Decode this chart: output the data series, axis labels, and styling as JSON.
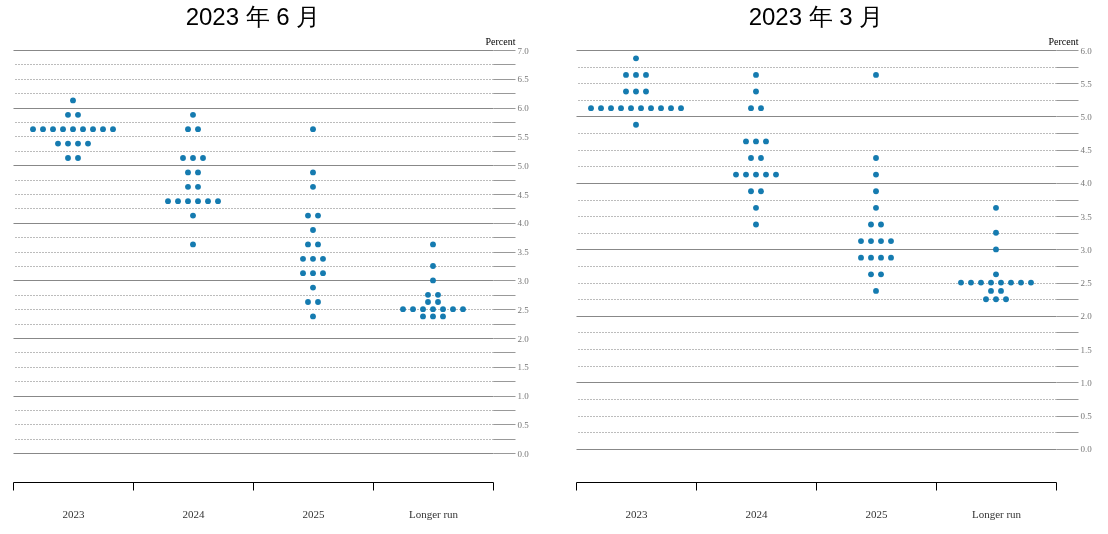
{
  "chart_data": [
    {
      "type": "scatter",
      "title": "2023 年 6 月",
      "ylabel": "Percent",
      "categories": [
        "2023",
        "2024",
        "2025",
        "Longer run"
      ],
      "marker": "circle",
      "grid": true,
      "ylim": [
        -0.5,
        7
      ],
      "yticks": [
        {
          "value": 0,
          "label": "0.0"
        },
        {
          "value": 0.25,
          "label": null
        },
        {
          "value": 0.5,
          "label": "0.5"
        },
        {
          "value": 0.75,
          "label": null
        },
        {
          "value": 1,
          "label": "1.0"
        },
        {
          "value": 1.25,
          "label": null
        },
        {
          "value": 1.5,
          "label": "1.5"
        },
        {
          "value": 1.75,
          "label": null
        },
        {
          "value": 2,
          "label": "2.0"
        },
        {
          "value": 2.25,
          "label": null
        },
        {
          "value": 2.5,
          "label": "2.5"
        },
        {
          "value": 2.75,
          "label": null
        },
        {
          "value": 3,
          "label": "3.0"
        },
        {
          "value": 3.25,
          "label": null
        },
        {
          "value": 3.5,
          "label": "3.5"
        },
        {
          "value": 3.75,
          "label": null
        },
        {
          "value": 4,
          "label": "4.0"
        },
        {
          "value": 4.25,
          "label": null
        },
        {
          "value": 4.5,
          "label": "4.5"
        },
        {
          "value": 4.75,
          "label": null
        },
        {
          "value": 5,
          "label": "5.0"
        },
        {
          "value": 5.25,
          "label": null
        },
        {
          "value": 5.5,
          "label": "5.5"
        },
        {
          "value": 5.75,
          "label": null
        },
        {
          "value": 6,
          "label": "6.0"
        },
        {
          "value": 6.25,
          "label": null
        },
        {
          "value": 6.5,
          "label": "6.5"
        },
        {
          "value": 6.75,
          "label": null
        },
        {
          "value": 7,
          "label": "7.0"
        }
      ],
      "series": [
        {
          "color": "#157bb0",
          "values": [
            6.125,
            5.875,
            5.625,
            3.625
          ]
        },
        {
          "color": "#157bb0",
          "values": [
            5.875,
            5.625,
            4.875,
            3.25
          ]
        },
        {
          "color": "#157bb0",
          "values": [
            5.875,
            5.625,
            4.625,
            3.0
          ]
        },
        {
          "color": "#157bb0",
          "values": [
            5.625,
            5.125,
            4.125,
            2.75
          ]
        },
        {
          "color": "#157bb0",
          "values": [
            5.625,
            5.125,
            4.125,
            2.75
          ]
        },
        {
          "color": "#157bb0",
          "values": [
            5.625,
            5.125,
            3.875,
            2.625
          ]
        },
        {
          "color": "#157bb0",
          "values": [
            5.625,
            4.875,
            3.625,
            2.625
          ]
        },
        {
          "color": "#157bb0",
          "values": [
            5.625,
            4.875,
            3.625,
            2.5
          ]
        },
        {
          "color": "#157bb0",
          "values": [
            5.625,
            4.625,
            3.375,
            2.5
          ]
        },
        {
          "color": "#157bb0",
          "values": [
            5.625,
            4.625,
            3.375,
            2.5
          ]
        },
        {
          "color": "#157bb0",
          "values": [
            5.625,
            4.375,
            3.375,
            2.5
          ]
        },
        {
          "color": "#157bb0",
          "values": [
            5.625,
            4.375,
            3.125,
            2.5
          ]
        },
        {
          "color": "#157bb0",
          "values": [
            5.375,
            4.375,
            3.125,
            2.5
          ]
        },
        {
          "color": "#157bb0",
          "values": [
            5.375,
            4.375,
            3.125,
            2.5
          ]
        },
        {
          "color": "#157bb0",
          "values": [
            5.375,
            4.375,
            2.875,
            2.375
          ]
        },
        {
          "color": "#157bb0",
          "values": [
            5.375,
            4.375,
            2.625,
            2.375
          ]
        },
        {
          "color": "#157bb0",
          "values": [
            5.125,
            4.125,
            2.625,
            2.375
          ]
        },
        {
          "color": "#157bb0",
          "values": [
            5.125,
            3.625,
            2.375,
            null
          ]
        }
      ]
    },
    {
      "type": "scatter",
      "title": "2023 年 3 月",
      "ylabel": "Percent",
      "categories": [
        "2023",
        "2024",
        "2025",
        "Longer run"
      ],
      "marker": "circle",
      "grid": true,
      "ylim": [
        -0.5,
        6
      ],
      "yticks": [
        {
          "value": 0,
          "label": "0.0"
        },
        {
          "value": 0.25,
          "label": null
        },
        {
          "value": 0.5,
          "label": "0.5"
        },
        {
          "value": 0.75,
          "label": null
        },
        {
          "value": 1,
          "label": "1.0"
        },
        {
          "value": 1.25,
          "label": null
        },
        {
          "value": 1.5,
          "label": "1.5"
        },
        {
          "value": 1.75,
          "label": null
        },
        {
          "value": 2,
          "label": "2.0"
        },
        {
          "value": 2.25,
          "label": null
        },
        {
          "value": 2.5,
          "label": "2.5"
        },
        {
          "value": 2.75,
          "label": null
        },
        {
          "value": 3,
          "label": "3.0"
        },
        {
          "value": 3.25,
          "label": null
        },
        {
          "value": 3.5,
          "label": "3.5"
        },
        {
          "value": 3.75,
          "label": null
        },
        {
          "value": 4,
          "label": "4.0"
        },
        {
          "value": 4.25,
          "label": null
        },
        {
          "value": 4.5,
          "label": "4.5"
        },
        {
          "value": 4.75,
          "label": null
        },
        {
          "value": 5,
          "label": "5.0"
        },
        {
          "value": 5.25,
          "label": null
        },
        {
          "value": 5.5,
          "label": "5.5"
        },
        {
          "value": 5.75,
          "label": null
        },
        {
          "value": 6,
          "label": "6.0"
        }
      ],
      "series": [
        {
          "color": "#157bb0",
          "values": [
            5.875,
            5.625,
            5.625,
            3.625
          ]
        },
        {
          "color": "#157bb0",
          "values": [
            5.625,
            5.375,
            4.375,
            3.25
          ]
        },
        {
          "color": "#157bb0",
          "values": [
            5.625,
            5.125,
            4.125,
            3.0
          ]
        },
        {
          "color": "#157bb0",
          "values": [
            5.625,
            5.125,
            3.875,
            2.625
          ]
        },
        {
          "color": "#157bb0",
          "values": [
            5.375,
            4.625,
            3.625,
            2.5
          ]
        },
        {
          "color": "#157bb0",
          "values": [
            5.375,
            4.625,
            3.375,
            2.5
          ]
        },
        {
          "color": "#157bb0",
          "values": [
            5.375,
            4.625,
            3.375,
            2.5
          ]
        },
        {
          "color": "#157bb0",
          "values": [
            5.125,
            4.375,
            3.125,
            2.5
          ]
        },
        {
          "color": "#157bb0",
          "values": [
            5.125,
            4.375,
            3.125,
            2.5
          ]
        },
        {
          "color": "#157bb0",
          "values": [
            5.125,
            4.125,
            3.125,
            2.5
          ]
        },
        {
          "color": "#157bb0",
          "values": [
            5.125,
            4.125,
            3.125,
            2.5
          ]
        },
        {
          "color": "#157bb0",
          "values": [
            5.125,
            4.125,
            2.875,
            2.5
          ]
        },
        {
          "color": "#157bb0",
          "values": [
            5.125,
            4.125,
            2.875,
            2.375
          ]
        },
        {
          "color": "#157bb0",
          "values": [
            5.125,
            4.125,
            2.875,
            2.375
          ]
        },
        {
          "color": "#157bb0",
          "values": [
            5.125,
            3.875,
            2.875,
            2.25
          ]
        },
        {
          "color": "#157bb0",
          "values": [
            5.125,
            3.875,
            2.625,
            2.25
          ]
        },
        {
          "color": "#157bb0",
          "values": [
            5.125,
            3.625,
            2.625,
            2.25
          ]
        },
        {
          "color": "#157bb0",
          "values": [
            4.875,
            3.375,
            2.375,
            null
          ]
        }
      ]
    }
  ]
}
